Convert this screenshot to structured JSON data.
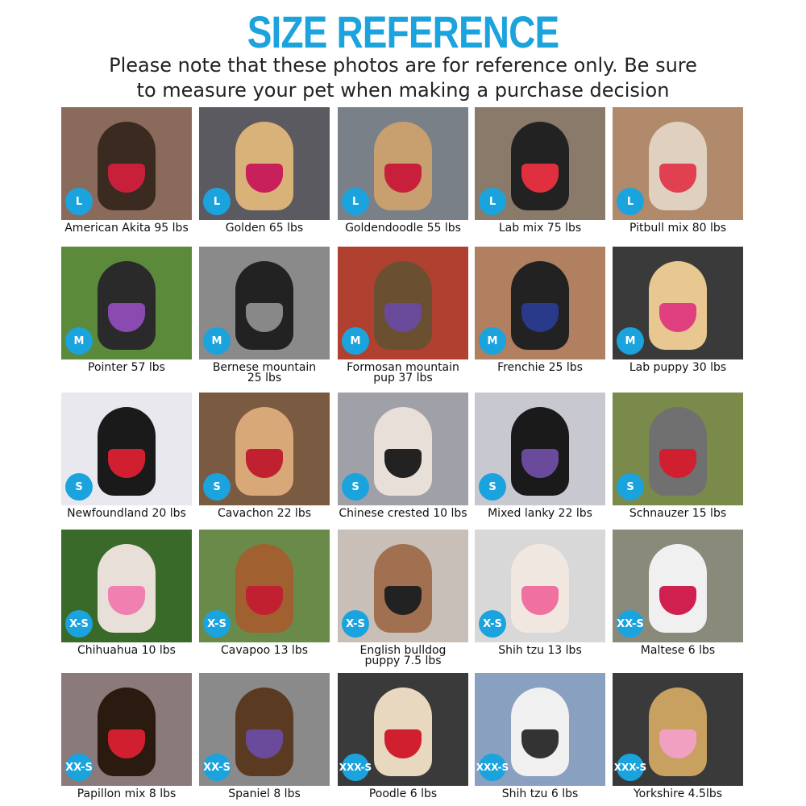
{
  "title": "SIZE REFERENCE",
  "subtitle_line1": "Please note that these photos are for reference only. Be sure",
  "subtitle_line2": "to measure your pet when making a purchase decision",
  "accent_color": "#1ba3de",
  "rows": [
    [
      {
        "size": "L",
        "caption": "American Akita 95 lbs",
        "bg": "#8a6a5a",
        "dog": "#3a2a20",
        "harness": "#c8203a"
      },
      {
        "size": "L",
        "caption": "Golden 65 lbs",
        "bg": "#5a5a60",
        "dog": "#d9b27a",
        "harness": "#c8205a"
      },
      {
        "size": "L",
        "caption": "Goldendoodle 55 lbs",
        "bg": "#7a8088",
        "dog": "#c8a070",
        "harness": "#c8203a"
      },
      {
        "size": "L",
        "caption": "Lab mix 75 lbs",
        "bg": "#8a7a6a",
        "dog": "#222",
        "harness": "#e03040"
      },
      {
        "size": "L",
        "caption": "Pitbull mix 80 lbs",
        "bg": "#b08a6a",
        "dog": "#e0d0c0",
        "harness": "#e04050"
      }
    ],
    [
      {
        "size": "M",
        "caption": "Pointer 57 lbs",
        "bg": "#5a8a3a",
        "dog": "#2a2a2a",
        "harness": "#8a4ab0"
      },
      {
        "size": "M",
        "caption": "Bernese mountain\n25 lbs",
        "bg": "#8a8a8a",
        "dog": "#222",
        "harness": "#888"
      },
      {
        "size": "M",
        "caption": "Formosan mountain\npup 37 lbs",
        "bg": "#b04030",
        "dog": "#6a5030",
        "harness": "#6a4a9a"
      },
      {
        "size": "M",
        "caption": "Frenchie 25 lbs",
        "bg": "#b08060",
        "dog": "#222",
        "harness": "#2a3a8a"
      },
      {
        "size": "M",
        "caption": "Lab puppy 30 lbs",
        "bg": "#3a3a3a",
        "dog": "#e8c890",
        "harness": "#e04080"
      }
    ],
    [
      {
        "size": "S",
        "caption": "Newfoundland 20 lbs",
        "bg": "#e8e8ee",
        "dog": "#1a1a1a",
        "harness": "#d02030"
      },
      {
        "size": "S",
        "caption": "Cavachon 22 lbs",
        "bg": "#7a5a40",
        "dog": "#d8a878",
        "harness": "#c02030"
      },
      {
        "size": "S",
        "caption": "Chinese crested 10 lbs",
        "bg": "#a0a0a8",
        "dog": "#e8e0d8",
        "harness": "#222"
      },
      {
        "size": "S",
        "caption": "Mixed lanky 22 lbs",
        "bg": "#c8c8d0",
        "dog": "#1a1a1a",
        "harness": "#6a4a9a"
      },
      {
        "size": "S",
        "caption": "Schnauzer 15 lbs",
        "bg": "#7a8a4a",
        "dog": "#707070",
        "harness": "#d02030"
      }
    ],
    [
      {
        "size": "X-S",
        "caption": "Chihuahua 10 lbs",
        "bg": "#3a6a2a",
        "dog": "#e8e0d8",
        "harness": "#f080b0"
      },
      {
        "size": "X-S",
        "caption": "Cavapoo 13 lbs",
        "bg": "#6a8a4a",
        "dog": "#a06030",
        "harness": "#c02030"
      },
      {
        "size": "X-S",
        "caption": "English bulldog\npuppy 7.5 lbs",
        "bg": "#c8c0b8",
        "dog": "#a07050",
        "harness": "#222"
      },
      {
        "size": "X-S",
        "caption": "Shih tzu 13 lbs",
        "bg": "#d8d8d8",
        "dog": "#f0e8e0",
        "harness": "#f070a0"
      },
      {
        "size": "XX-S",
        "caption": "Maltese 6 lbs",
        "bg": "#8a8a7a",
        "dog": "#f0f0f0",
        "harness": "#d02050"
      }
    ],
    [
      {
        "size": "XX-S",
        "caption": "Papillon mix 8 lbs",
        "bg": "#8a7a7a",
        "dog": "#2a1a10",
        "harness": "#d02030"
      },
      {
        "size": "XX-S",
        "caption": "Spaniel 8 lbs",
        "bg": "#8a8a8a",
        "dog": "#5a3a20",
        "harness": "#6a4a9a"
      },
      {
        "size": "XXX-S",
        "caption": "Poodle 6 lbs",
        "bg": "#3a3a3a",
        "dog": "#e8d8c0",
        "harness": "#d02030"
      },
      {
        "size": "XXX-S",
        "caption": "Shih tzu 6 lbs",
        "bg": "#8aa0c0",
        "dog": "#f0f0f0",
        "harness": "#333"
      },
      {
        "size": "XXX-S",
        "caption": "Yorkshire 4.5lbs",
        "bg": "#3a3a3a",
        "dog": "#c8a060",
        "harness": "#f0a0c0"
      }
    ]
  ]
}
